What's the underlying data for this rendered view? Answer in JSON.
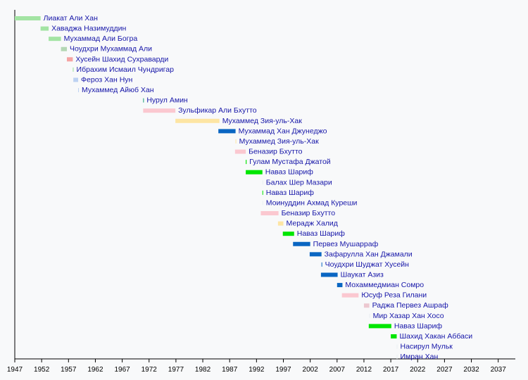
{
  "chart_data": {
    "type": "timeline",
    "title": "",
    "xlabel": "",
    "ylabel": "",
    "xlim": [
      1947,
      2040
    ],
    "xticks": [
      1947,
      1952,
      1957,
      1962,
      1967,
      1972,
      1977,
      1982,
      1987,
      1992,
      1997,
      2002,
      2007,
      2012,
      2017,
      2022,
      2027,
      2032,
      2037
    ],
    "grid": false,
    "colors": {
      "lightgreen": "#a3e4a3",
      "greygreen": "#b4d8b4",
      "salmon": "#f5a3a3",
      "lightblue": "#bcd2f2",
      "teal": "#1c9c78",
      "pink": "#fbc8d0",
      "yellow": "#fde5a3",
      "blue": "#0a66c2",
      "green": "#00e600",
      "mauve": "#ecc8d0",
      "faint": "#e8eef0"
    },
    "rows": [
      {
        "label": "Лиакат Али Хан",
        "start": 1947.0,
        "end": 1951.8,
        "color": "lightgreen"
      },
      {
        "label": "Хаваджа Назимуддин",
        "start": 1951.8,
        "end": 1953.3,
        "color": "lightgreen"
      },
      {
        "label": "Мухаммад Али Богра",
        "start": 1953.3,
        "end": 1955.6,
        "color": "lightgreen"
      },
      {
        "label": "Чоудхри Мухаммад Али",
        "start": 1955.6,
        "end": 1956.7,
        "color": "greygreen"
      },
      {
        "label": "Хусейн Шахид Сухраварди",
        "start": 1956.7,
        "end": 1957.8,
        "color": "salmon"
      },
      {
        "label": "Ибрахим Исмаил Чундригар",
        "start": 1957.8,
        "end": 1957.95,
        "color": "lightgreen"
      },
      {
        "label": "Фероз Хан Нун",
        "start": 1957.9,
        "end": 1958.8,
        "color": "lightblue"
      },
      {
        "label": "Мухаммед Айюб Хан",
        "start": 1958.8,
        "end": 1958.85,
        "color": "lightblue"
      },
      {
        "label": "Нурул Амин",
        "start": 1970.9,
        "end": 1971.0,
        "color": "teal"
      },
      {
        "label": "Зульфикар Али Бхутто",
        "start": 1970.9,
        "end": 1976.9,
        "color": "pink"
      },
      {
        "label": "Мухаммед Зия-уль-Хак",
        "start": 1976.9,
        "end": 1985.1,
        "color": "yellow"
      },
      {
        "label": "Мухаммад Хан Джунеджо",
        "start": 1984.9,
        "end": 1988.1,
        "color": "blue"
      },
      {
        "label": "Мухаммед Зия-уль-Хак",
        "start": 1988.1,
        "end": 1988.15,
        "color": "yellow"
      },
      {
        "label": "Беназир Бхутто",
        "start": 1988.0,
        "end": 1990.0,
        "color": "pink"
      },
      {
        "label": "Гулам Мустафа Джатой",
        "start": 1990.0,
        "end": 1990.15,
        "color": "green"
      },
      {
        "label": "Наваз Шариф",
        "start": 1990.0,
        "end": 1993.1,
        "color": "green"
      },
      {
        "label": "Балах Шер Мазари",
        "start": 1993.1,
        "end": 1993.15,
        "color": "faint"
      },
      {
        "label": "Наваз Шариф",
        "start": 1993.1,
        "end": 1993.2,
        "color": "green"
      },
      {
        "label": "Моинуддин Ахмад Куреши",
        "start": 1993.1,
        "end": 1993.15,
        "color": "faint"
      },
      {
        "label": "Беназир Бхутто",
        "start": 1992.8,
        "end": 1996.1,
        "color": "pink"
      },
      {
        "label": "Мерадж Халид",
        "start": 1996.0,
        "end": 1997.0,
        "color": "yellow"
      },
      {
        "label": "Наваз Шариф",
        "start": 1996.9,
        "end": 1999.0,
        "color": "green"
      },
      {
        "label": "Первез Мушарраф",
        "start": 1998.8,
        "end": 2002.0,
        "color": "blue"
      },
      {
        "label": "Зафарулла Хан Джамали",
        "start": 2001.9,
        "end": 2004.1,
        "color": "blue"
      },
      {
        "label": "Чоудхри Шуджат Хусейн",
        "start": 2004.1,
        "end": 2004.2,
        "color": "blue"
      },
      {
        "label": "Шаукат Азиз",
        "start": 2004.0,
        "end": 2007.1,
        "color": "blue"
      },
      {
        "label": "Мохаммедмиан Сомро",
        "start": 2007.0,
        "end": 2008.0,
        "color": "blue"
      },
      {
        "label": "Юсуф Реза Гилани",
        "start": 2007.9,
        "end": 2011.0,
        "color": "pink"
      },
      {
        "label": "Раджа Первез Ашраф",
        "start": 2012.0,
        "end": 2013.0,
        "color": "mauve"
      },
      {
        "label": "Мир Хазар Хан Хосо",
        "start": 2013.0,
        "end": 2013.05,
        "color": "faint"
      },
      {
        "label": "Наваз Шариф",
        "start": 2012.9,
        "end": 2017.1,
        "color": "green"
      },
      {
        "label": "Шахид Хакан Аббаси",
        "start": 2017.0,
        "end": 2018.1,
        "color": "green"
      },
      {
        "label": "Насирул Мульк",
        "start": 2018.1,
        "end": 2018.15,
        "color": "faint"
      },
      {
        "label": "Имран Хан",
        "start": 2018.1,
        "end": 2018.15,
        "color": "faint"
      }
    ]
  }
}
